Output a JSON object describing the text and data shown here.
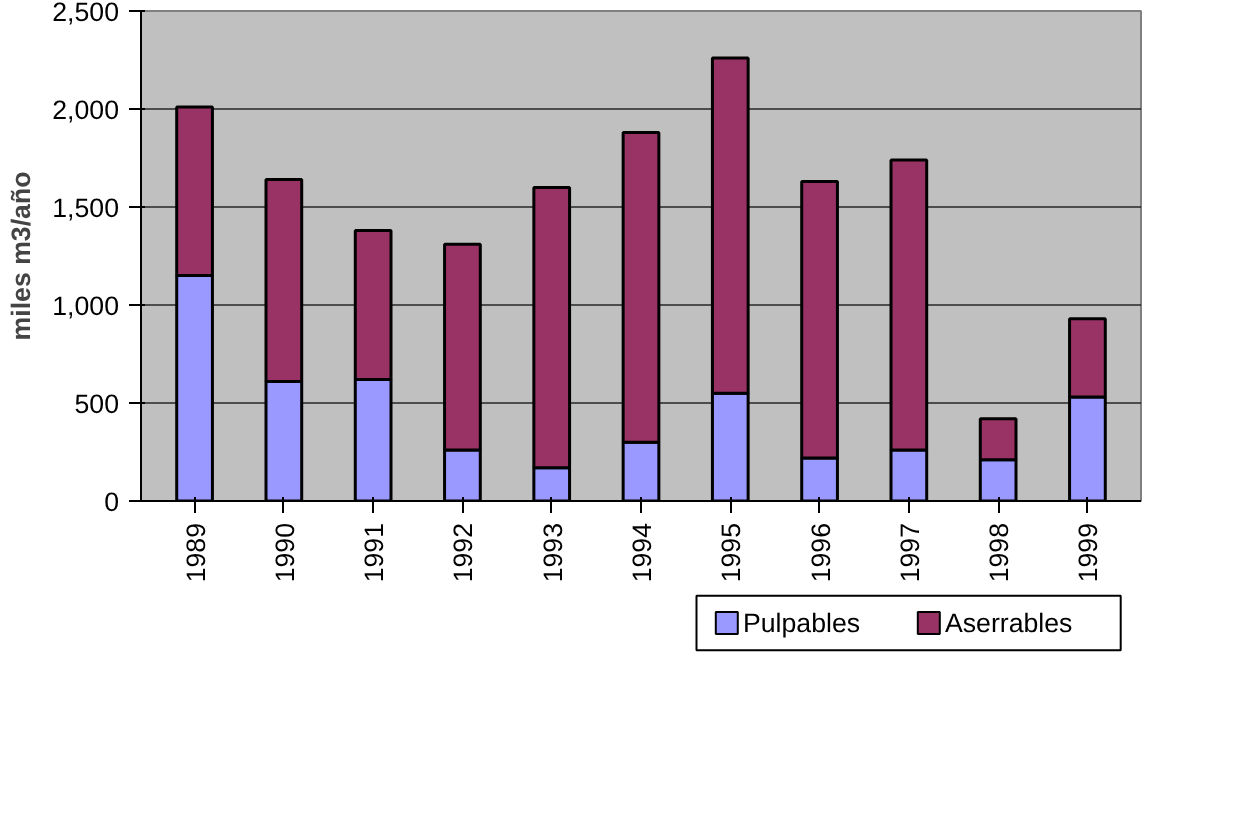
{
  "chart_data": {
    "type": "bar",
    "stacked": true,
    "ylabel": "miles m3/año",
    "categories": [
      "1989",
      "1990",
      "1991",
      "1992",
      "1993",
      "1994",
      "1995",
      "1996",
      "1997",
      "1998",
      "1999"
    ],
    "series": [
      {
        "name": "Pulpables",
        "color": "#9999ff",
        "values": [
          1150,
          610,
          620,
          260,
          170,
          300,
          550,
          220,
          260,
          210,
          530
        ]
      },
      {
        "name": "Aserrables",
        "color": "#993366",
        "values": [
          860,
          1030,
          760,
          1050,
          1430,
          1580,
          1710,
          1410,
          1480,
          210,
          400
        ]
      }
    ],
    "ylim": [
      0,
      2500
    ],
    "yticks": [
      {
        "value": 0,
        "label": "0"
      },
      {
        "value": 500,
        "label": "500"
      },
      {
        "value": 1000,
        "label": "1,000"
      },
      {
        "value": 1500,
        "label": "1,500"
      },
      {
        "value": 2000,
        "label": "2,000"
      },
      {
        "value": 2500,
        "label": "2,500"
      }
    ],
    "grid": "y",
    "legend": "bottom"
  }
}
